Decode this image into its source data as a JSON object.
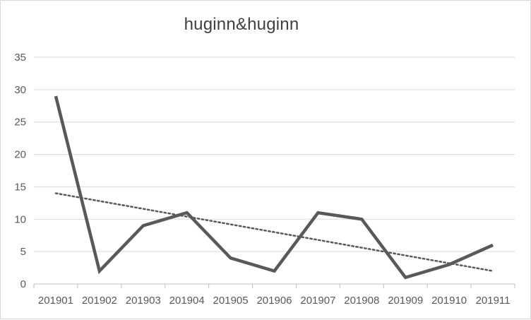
{
  "chart_data": {
    "type": "line",
    "title": "huginn&huginn",
    "categories": [
      "201901",
      "201902",
      "201903",
      "201904",
      "201905",
      "201906",
      "201907",
      "201908",
      "201909",
      "201910",
      "201911"
    ],
    "series": [
      {
        "values": [
          29,
          2,
          9,
          11,
          4,
          2,
          11,
          10,
          1,
          3,
          6
        ],
        "color": "#595959"
      }
    ],
    "trendline": {
      "type": "linear",
      "style": "dotted",
      "color": "#595959",
      "start": 14.0,
      "end": 2.0
    },
    "ylim": [
      0,
      35
    ],
    "yticks": [
      0,
      5,
      10,
      15,
      20,
      25,
      30,
      35
    ],
    "xlabel": "",
    "ylabel": "",
    "grid": true,
    "legend": "none"
  }
}
